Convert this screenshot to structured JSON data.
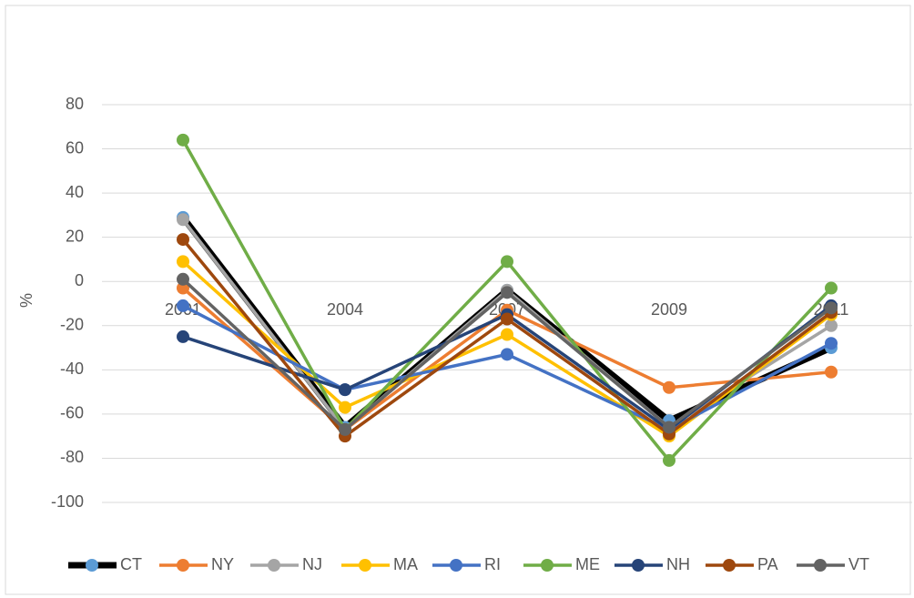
{
  "chart_data": {
    "type": "line",
    "y_label": "%",
    "categories": [
      "2001",
      "2004",
      "2007",
      "2009",
      "2011"
    ],
    "ylim": [
      -100,
      80
    ],
    "yticks": [
      -100,
      -80,
      -60,
      -40,
      -20,
      0,
      20,
      40,
      60,
      80
    ],
    "grid": true,
    "legend": "bottom",
    "series": [
      {
        "name": "CT",
        "color": "#000000",
        "marker_color": "#5b9bd5",
        "values": [
          29,
          -66,
          -4,
          -63,
          -30
        ]
      },
      {
        "name": "NY",
        "color": "#ed7d31",
        "values": [
          -3,
          -67,
          -13,
          -48,
          -41
        ]
      },
      {
        "name": "NJ",
        "color": "#a5a5a5",
        "values": [
          28,
          -67,
          -4,
          -66,
          -20
        ]
      },
      {
        "name": "MA",
        "color": "#ffc000",
        "values": [
          9,
          -57,
          -24,
          -70,
          -15
        ]
      },
      {
        "name": "RI",
        "color": "#4472c4",
        "values": [
          -11,
          -49,
          -33,
          -67,
          -28
        ]
      },
      {
        "name": "ME",
        "color": "#70ad47",
        "values": [
          64,
          -67,
          9,
          -81,
          -3
        ]
      },
      {
        "name": "NH",
        "color": "#264478",
        "values": [
          -25,
          -49,
          -15,
          -67,
          -11
        ]
      },
      {
        "name": "PA",
        "color": "#9e480e",
        "values": [
          19,
          -70,
          -17,
          -69,
          -14
        ]
      },
      {
        "name": "VT",
        "color": "#636363",
        "values": [
          1,
          -67,
          -5,
          -66,
          -12
        ]
      }
    ]
  }
}
